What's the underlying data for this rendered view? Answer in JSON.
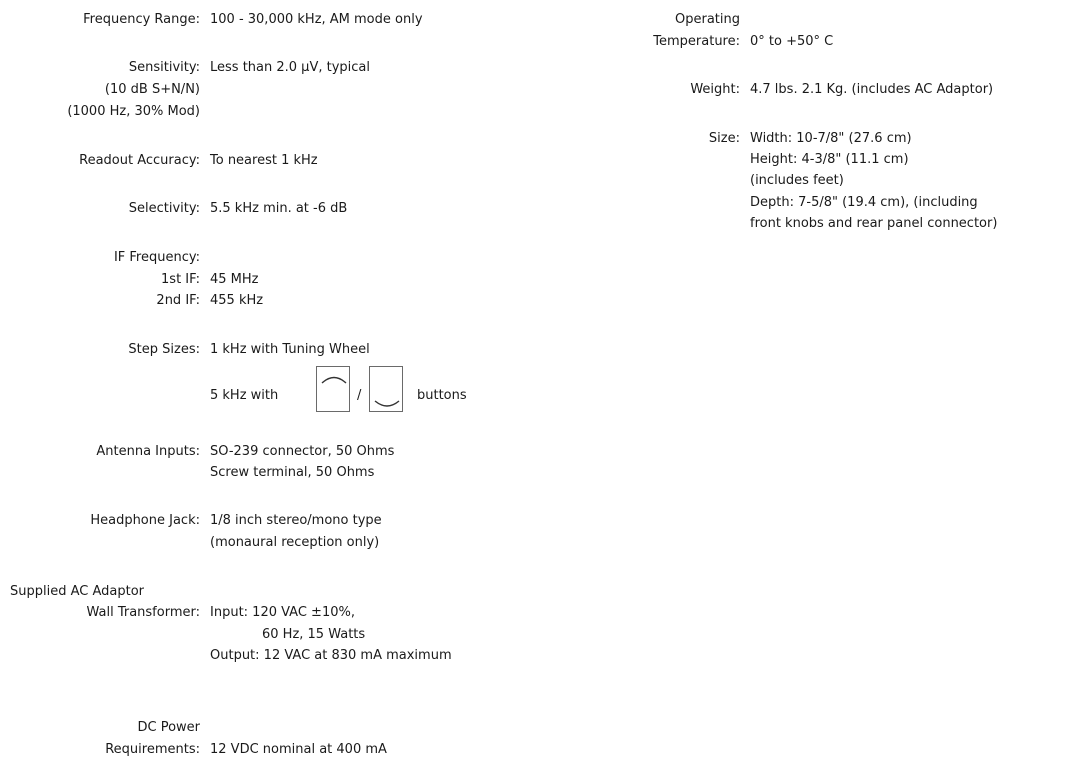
{
  "left": {
    "frequency_range": {
      "label": "Frequency Range:",
      "value": "100 - 30,000 kHz, AM mode only"
    },
    "sensitivity": {
      "label": "Sensitivity:",
      "label_line2": "(10 dB S+N/N)",
      "label_line3": "(1000 Hz, 30% Mod)",
      "value": "Less than 2.0 μV, typical"
    },
    "readout_accuracy": {
      "label": "Readout Accuracy:",
      "value": "To nearest 1 kHz"
    },
    "selectivity": {
      "label": "Selectivity:",
      "value": "5.5 kHz min. at -6 dB"
    },
    "if_frequency": {
      "label": "IF Frequency:",
      "first_label": "1st IF:",
      "first_value": "45 MHz",
      "second_label": "2nd IF:",
      "second_value": "455 kHz"
    },
    "step_sizes": {
      "label": "Step Sizes:",
      "value1": "1 kHz with Tuning Wheel",
      "value2_prefix": "5 kHz with",
      "value2_separator": "/",
      "value2_suffix": "buttons",
      "up_icon": "chevron-up-icon",
      "down_icon": "chevron-down-icon"
    },
    "antenna_inputs": {
      "label": "Antenna Inputs:",
      "value1": "SO-239 connector, 50 Ohms",
      "value2": "Screw terminal, 50 Ohms"
    },
    "headphone_jack": {
      "label": "Headphone Jack:",
      "value1": "1/8 inch stereo/mono type",
      "value2": "(monaural reception only)"
    },
    "ac_adaptor": {
      "label_line1": "Supplied AC Adaptor",
      "label_line2": "Wall Transformer:",
      "value1": "Input: 120 VAC ±10%,",
      "value2": "60 Hz, 15 Watts",
      "value3": "Output: 12 VAC at 830 mA maximum"
    },
    "dc_power": {
      "label_line1": "DC Power",
      "label_line2": "Requirements:",
      "value": "12 VDC nominal at 400 mA"
    }
  },
  "right": {
    "operating_temperature": {
      "label_line1": "Operating",
      "label_line2": "Temperature:",
      "value": "0° to +50° C"
    },
    "weight": {
      "label": "Weight:",
      "value": "4.7 lbs. 2.1 Kg. (includes AC Adaptor)"
    },
    "size": {
      "label": "Size:",
      "value1": "Width: 10-7/8\" (27.6 cm)",
      "value2": "Height: 4-3/8\" (11.1 cm)",
      "value3": "(includes feet)",
      "value4": "Depth: 7-5/8\" (19.4 cm), (including",
      "value5": "front knobs and rear panel connector)"
    }
  }
}
